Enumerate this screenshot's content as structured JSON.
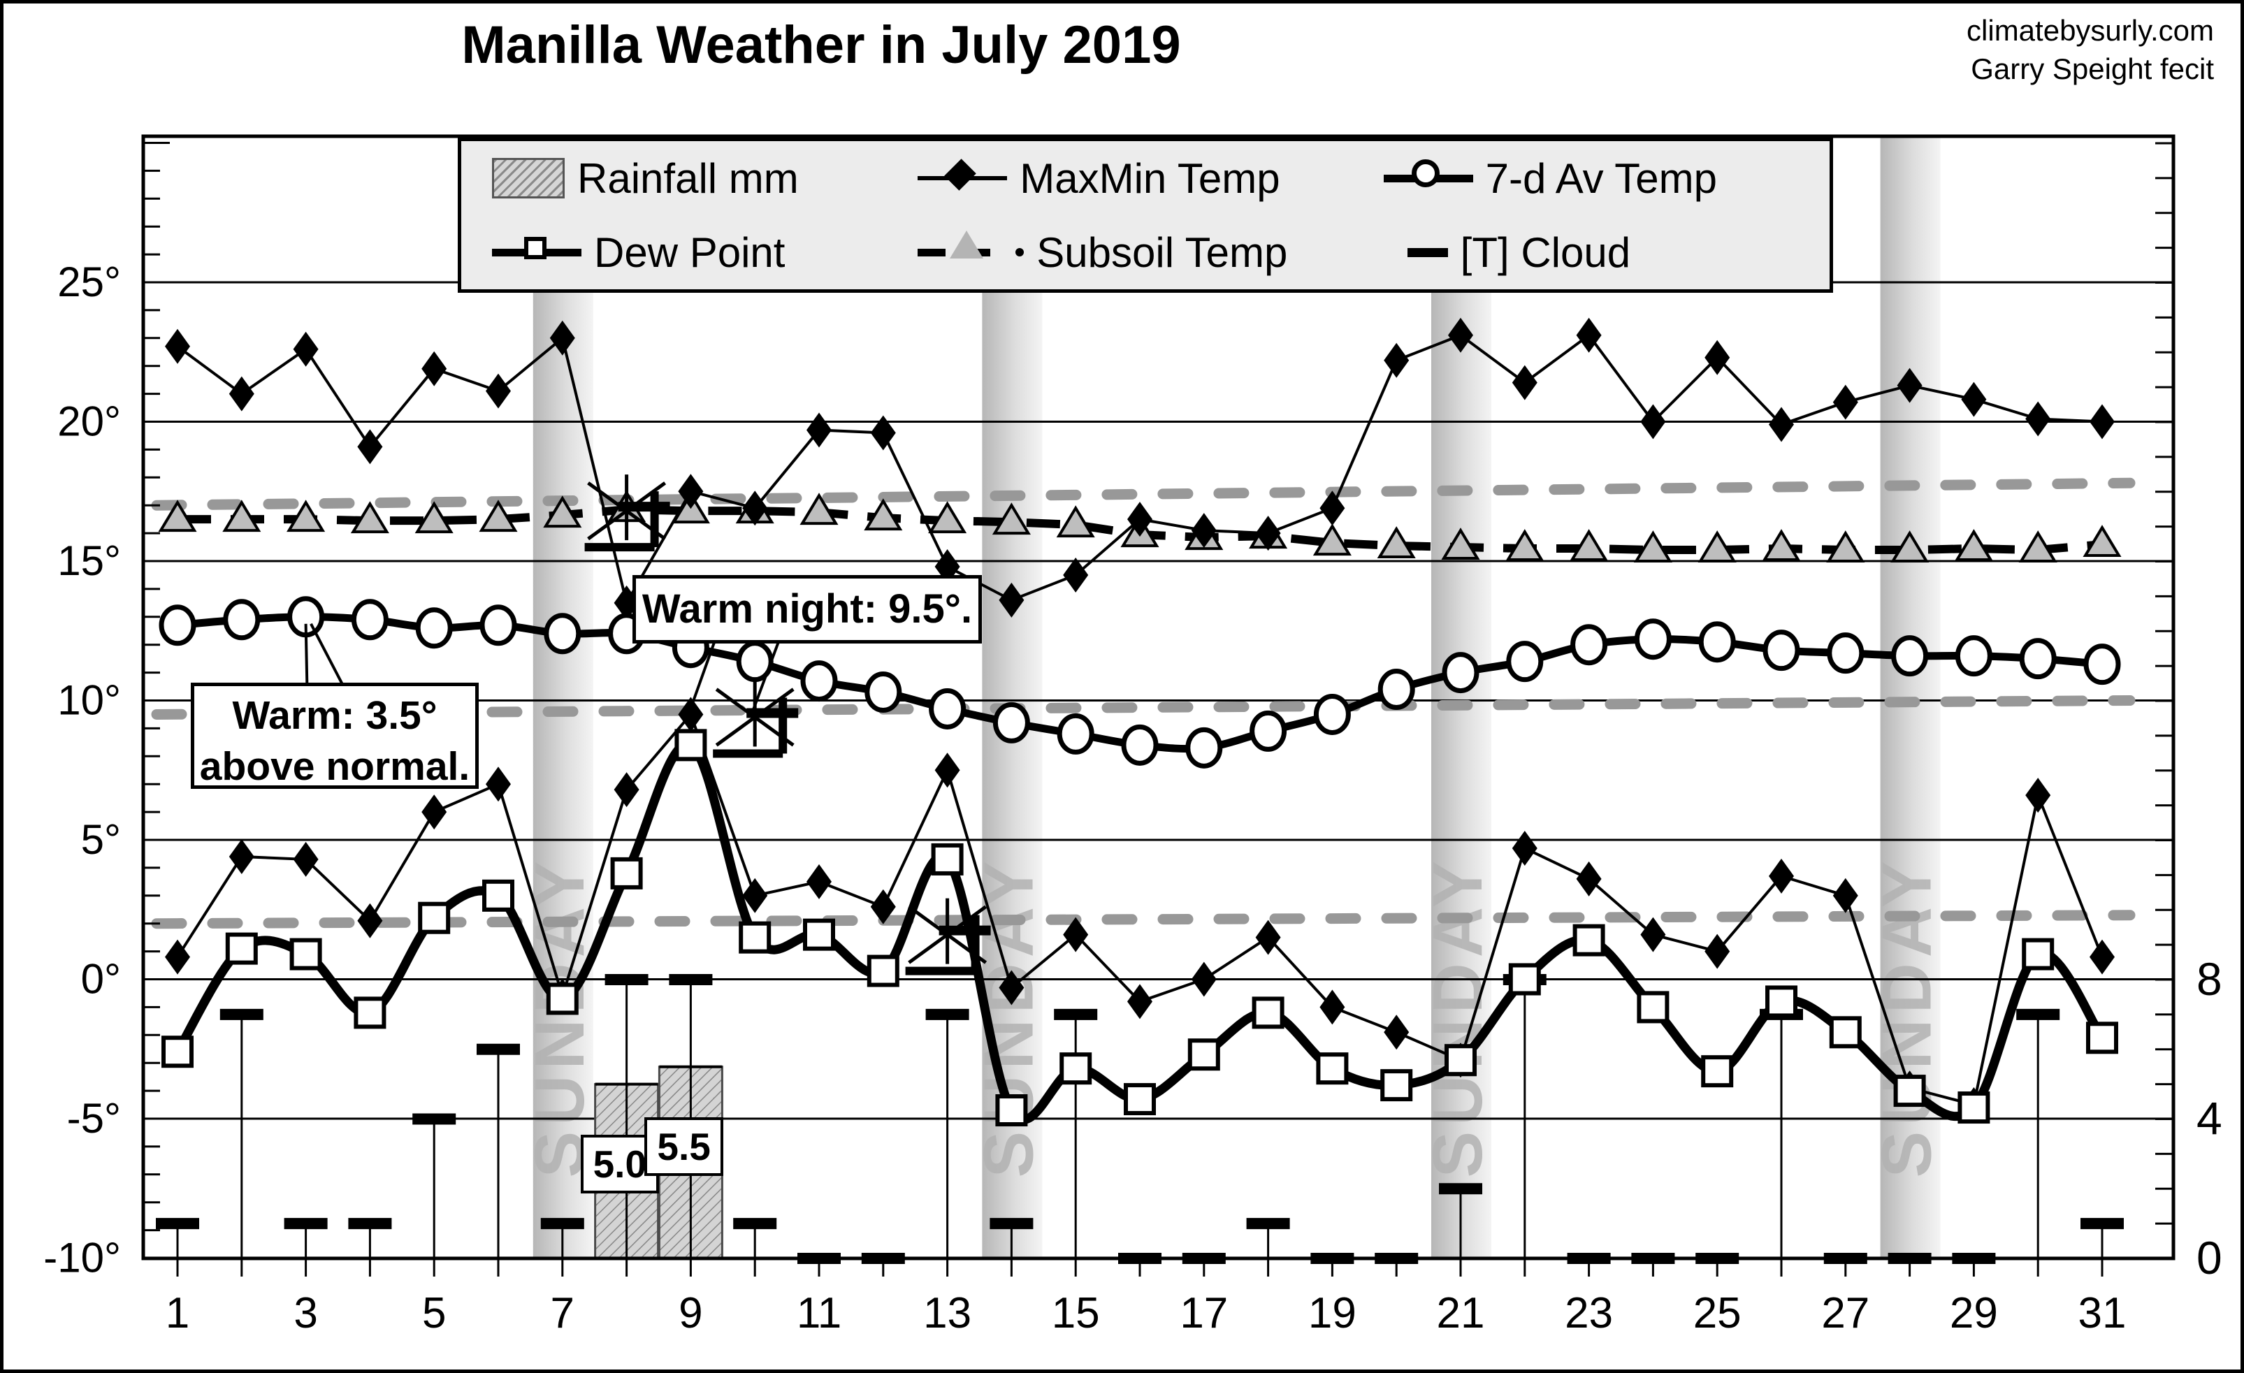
{
  "title": "Manilla Weather in July 2019",
  "attribution": {
    "line1": "climatebysurly.com",
    "line2": "Garry Speight fecit"
  },
  "legend": {
    "items": [
      {
        "label": "Rainfall mm",
        "marker": "rainfall-swatch"
      },
      {
        "label": "MaxMin Temp",
        "marker": "filled-diamond-line"
      },
      {
        "label": "7-d Av Temp",
        "marker": "open-circle-line"
      },
      {
        "label": "Dew Point",
        "marker": "open-square-line"
      },
      {
        "label": "Subsoil Temp",
        "marker": "gray-triangle-dashed-line"
      },
      {
        "label": "[T] Cloud",
        "marker": "black-dash"
      }
    ]
  },
  "annotations": {
    "warm": {
      "line1": "Warm: 3.5°",
      "line2": "above normal.",
      "points_to_day": 3,
      "leaders": [
        [
          3.6,
          10.45,
          3.08,
          12.75
        ],
        [
          3.02,
          10.45,
          3.0,
          12.75
        ]
      ]
    },
    "warm_night": {
      "text": "Warm night: 9.5°.",
      "points_to_day": 9,
      "leaders": [
        [
          9.4,
          12.3,
          9.02,
          9.85
        ],
        [
          10.4,
          12.3,
          9.98,
          9.7
        ]
      ]
    }
  },
  "chart_data": {
    "type": "line",
    "x_days": [
      1,
      2,
      3,
      4,
      5,
      6,
      7,
      8,
      9,
      10,
      11,
      12,
      13,
      14,
      15,
      16,
      17,
      18,
      19,
      20,
      21,
      22,
      23,
      24,
      25,
      26,
      27,
      28,
      29,
      30,
      31
    ],
    "x_tick_labels": [
      "1",
      "3",
      "5",
      "7",
      "9",
      "11",
      "13",
      "15",
      "17",
      "19",
      "21",
      "23",
      "25",
      "27",
      "29",
      "31"
    ],
    "series": [
      {
        "name": "MaxMin Temp (max)",
        "marker": "diamond",
        "values": [
          22.7,
          21.0,
          22.6,
          19.1,
          21.9,
          21.1,
          23.0,
          13.5,
          17.5,
          16.9,
          19.7,
          19.6,
          14.8,
          13.6,
          14.5,
          16.5,
          16.1,
          16.0,
          16.9,
          22.2,
          23.1,
          21.4,
          23.1,
          20.0,
          22.3,
          19.9,
          20.7,
          21.3,
          20.8,
          20.1,
          20.0
        ]
      },
      {
        "name": "MaxMin Temp (min)",
        "marker": "diamond",
        "values": [
          0.8,
          4.4,
          4.3,
          2.1,
          6.0,
          7.0,
          -0.6,
          6.8,
          9.5,
          3.0,
          3.5,
          2.6,
          7.5,
          -0.3,
          1.6,
          -0.8,
          0.0,
          1.5,
          -1.0,
          -1.9,
          -2.9,
          4.7,
          3.6,
          1.6,
          1.0,
          3.7,
          3.0,
          -3.9,
          -4.5,
          6.6,
          0.8
        ]
      },
      {
        "name": "7-d Av Temp",
        "marker": "circle",
        "values": [
          12.7,
          12.9,
          13.0,
          12.9,
          12.6,
          12.7,
          12.4,
          12.4,
          11.9,
          11.4,
          10.7,
          10.3,
          9.7,
          9.2,
          8.8,
          8.4,
          8.3,
          8.9,
          9.5,
          10.4,
          11.0,
          11.4,
          12.0,
          12.2,
          12.1,
          11.8,
          11.7,
          11.6,
          11.6,
          11.5,
          11.3
        ]
      },
      {
        "name": "Dew Point",
        "marker": "square",
        "values": [
          -2.6,
          1.1,
          0.9,
          -1.2,
          2.2,
          3.0,
          -0.7,
          3.8,
          8.4,
          1.5,
          1.6,
          0.3,
          4.3,
          -4.7,
          -3.2,
          -4.3,
          -2.7,
          -1.2,
          -3.2,
          -3.8,
          -2.9,
          0.0,
          1.4,
          -1.0,
          -3.3,
          -0.8,
          -1.9,
          -4.0,
          -4.6,
          0.9,
          -2.1
        ]
      },
      {
        "name": "Subsoil Temp",
        "marker": "triangle",
        "values": [
          16.5,
          16.5,
          16.5,
          16.45,
          16.45,
          16.5,
          16.65,
          16.85,
          16.8,
          16.8,
          16.75,
          16.55,
          16.45,
          16.4,
          16.3,
          15.95,
          15.85,
          15.9,
          15.65,
          15.55,
          15.5,
          15.45,
          15.45,
          15.4,
          15.4,
          15.45,
          15.4,
          15.4,
          15.45,
          15.4,
          15.6
        ]
      }
    ],
    "cloud_okta": [
      1,
      7,
      1,
      1,
      4,
      6,
      1,
      8,
      8,
      1,
      0,
      0,
      7,
      1,
      7,
      0,
      0,
      1,
      0,
      0,
      2,
      8,
      0,
      0,
      0,
      7,
      0,
      0,
      0,
      7,
      1
    ],
    "rainfall_mm": [
      null,
      null,
      null,
      null,
      null,
      null,
      null,
      5.0,
      5.5,
      null,
      null,
      null,
      null,
      null,
      null,
      null,
      null,
      null,
      null,
      null,
      null,
      null,
      null,
      null,
      null,
      null,
      null,
      null,
      null,
      null,
      null
    ],
    "rain_labels": [
      {
        "day": 8,
        "value": 5.0,
        "text": "5.0"
      },
      {
        "day": 9,
        "value": 5.5,
        "text": "5.5"
      }
    ],
    "normals": {
      "max": {
        "start": 17.0,
        "end": 17.8
      },
      "mean": {
        "start": 9.5,
        "end": 10.0
      },
      "min": {
        "start": 2.0,
        "end": 2.3
      }
    },
    "wind_marks": [
      {
        "day": 8,
        "temp": 16.8
      },
      {
        "day": 10,
        "temp": 9.4
      },
      {
        "day": 13,
        "temp": 1.6
      }
    ],
    "sundays": [
      7,
      14,
      21,
      28
    ],
    "sunday_label": "SUNDAY",
    "y_left": {
      "min": -10,
      "max": 30,
      "major": 5,
      "minor": 1,
      "tick_labels": [
        "25°",
        "20°",
        "15°",
        "10°",
        "5°",
        "0°",
        "-5°",
        "-10°"
      ],
      "tick_values": [
        25,
        20,
        15,
        10,
        5,
        0,
        -5,
        -10
      ]
    },
    "y_right": {
      "tick_labels": [
        "8",
        "4",
        "0"
      ],
      "tick_values": [
        8,
        4,
        0
      ],
      "minor_step_okta": 1
    },
    "grid": true,
    "colors": {
      "ink": "#000000",
      "normal_dash": "#989898",
      "subsoil_fill": "#bebebe",
      "sunday_band_dark": "#b6b6b6",
      "sunday_band_light": "#f4f4f4",
      "sunday_text": "#b2b2b2",
      "legend_bg": "#ececec",
      "rain_fill": "#d4d4d4",
      "rain_hatch": "#878787"
    }
  }
}
